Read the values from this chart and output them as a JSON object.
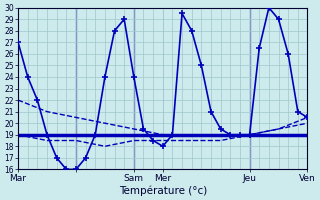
{
  "xlabel": "Température (°c)",
  "background_color": "#cdeaed",
  "line_color": "#0000bb",
  "ylim": [
    16,
    30
  ],
  "yticks": [
    16,
    17,
    18,
    19,
    20,
    21,
    22,
    23,
    24,
    25,
    26,
    27,
    28,
    29,
    30
  ],
  "grid_color": "#a0c8cc",
  "xtick_positions": [
    0,
    48,
    96,
    120,
    192,
    240
  ],
  "xtick_labels": [
    "Mar",
    "",
    "Sam",
    "Mer",
    "Jeu",
    "Ven"
  ],
  "vlines_x": [
    48,
    96,
    192
  ],
  "series_main": {
    "x": [
      0,
      8,
      16,
      24,
      32,
      40,
      48,
      56,
      64,
      72,
      80,
      88,
      96,
      104,
      112,
      120,
      128,
      136,
      144,
      152,
      160,
      168,
      176,
      184,
      192,
      200,
      208,
      216,
      224,
      232,
      240
    ],
    "y": [
      27,
      24,
      22,
      19,
      17,
      16,
      16,
      17,
      19,
      24,
      28,
      29,
      24,
      19.5,
      18.5,
      18,
      19,
      29.5,
      28,
      25,
      21,
      19.5,
      19,
      19,
      19,
      26.5,
      30,
      29,
      26,
      21,
      20.5
    ]
  },
  "series_flat": {
    "x": [
      0,
      240
    ],
    "y": [
      19,
      19
    ]
  },
  "series_dashed1": {
    "x": [
      0,
      24,
      48,
      72,
      96,
      120,
      144,
      168,
      192,
      216,
      240
    ],
    "y": [
      22,
      21,
      20.5,
      20,
      19.5,
      19,
      19,
      19,
      19,
      19.5,
      20
    ]
  },
  "series_dashed2": {
    "x": [
      0,
      24,
      48,
      72,
      96,
      120,
      144,
      168,
      192,
      216,
      240
    ],
    "y": [
      19,
      18.5,
      18.5,
      18,
      18.5,
      18.5,
      18.5,
      18.5,
      19,
      19.5,
      20.5
    ]
  }
}
